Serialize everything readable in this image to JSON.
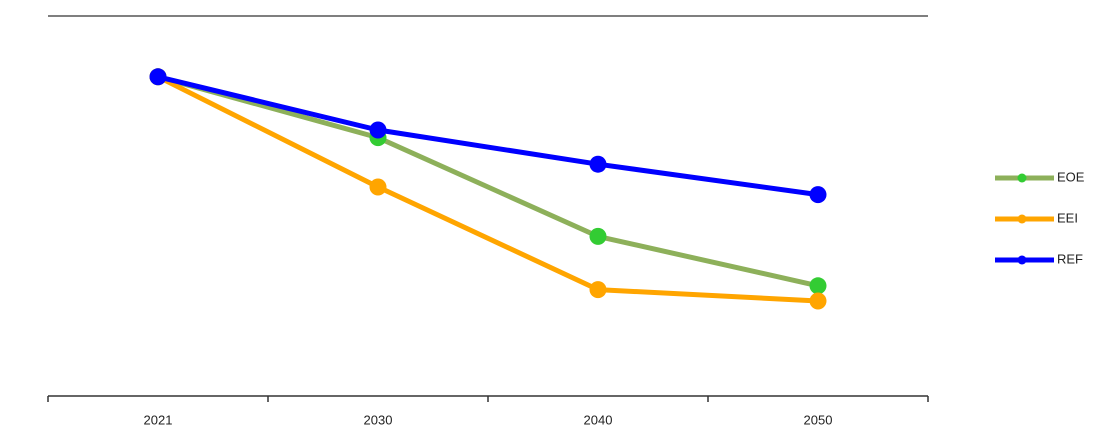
{
  "chart_data": {
    "type": "line",
    "categories": [
      "2021",
      "2030",
      "2040",
      "2050"
    ],
    "series": [
      {
        "name": "EOE",
        "color": "#8db05a",
        "marker_color": "#33cc33",
        "values": [
          84,
          68,
          42,
          29
        ]
      },
      {
        "name": "EEI",
        "color": "#ffa500",
        "marker_color": "#ffa500",
        "values": [
          84,
          55,
          28,
          25
        ]
      },
      {
        "name": "REF",
        "color": "#0000ff",
        "marker_color": "#0000ff",
        "values": [
          84,
          70,
          61,
          53
        ]
      }
    ],
    "ylim": [
      0,
      100
    ],
    "legend": "right"
  }
}
